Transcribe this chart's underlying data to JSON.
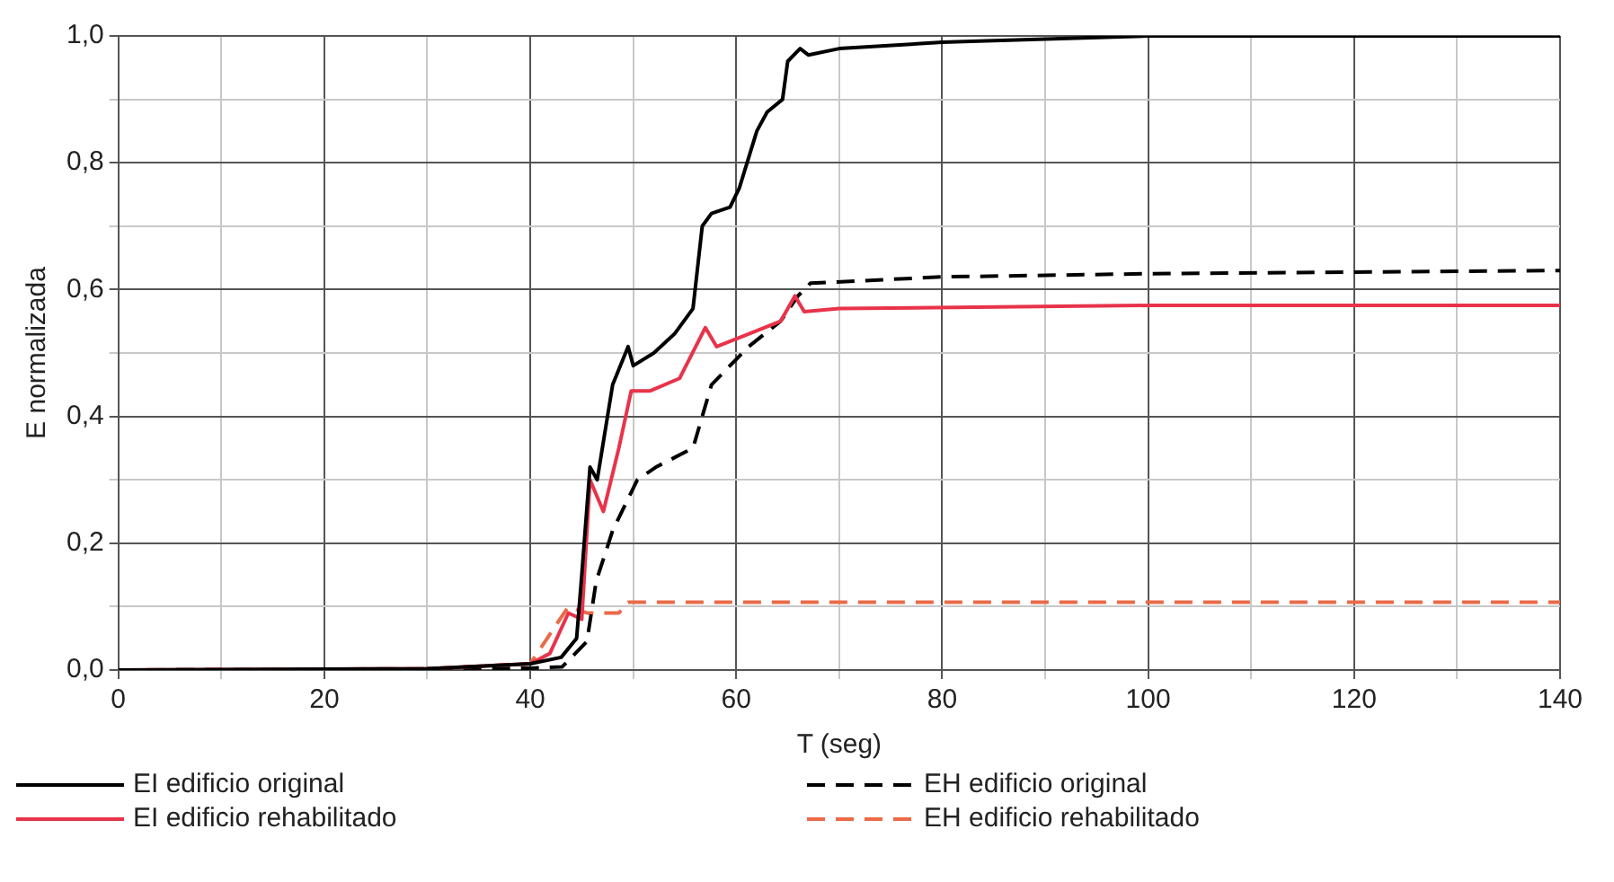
{
  "chart_data": {
    "type": "line",
    "xlabel": "T (seg)",
    "ylabel": "E normalizada",
    "xlim": [
      0,
      140
    ],
    "ylim": [
      0,
      1
    ],
    "xticks": [
      0,
      {
        "value": 10,
        "label": null
      },
      20,
      {
        "value": 30,
        "label": null
      },
      40,
      {
        "value": 50,
        "label": null
      },
      60,
      {
        "value": 70,
        "label": null
      },
      80,
      {
        "value": 90,
        "label": null
      },
      100,
      {
        "value": 110,
        "label": null
      },
      120,
      {
        "value": 130,
        "label": null
      },
      140
    ],
    "yticks": [
      {
        "value": 0,
        "label": "0,0"
      },
      {
        "value": 0.1,
        "label": null
      },
      {
        "value": 0.2,
        "label": "0,2"
      },
      {
        "value": 0.3,
        "label": null
      },
      {
        "value": 0.4,
        "label": "0,4"
      },
      {
        "value": 0.5,
        "label": null
      },
      {
        "value": 0.6,
        "label": "0,6"
      },
      {
        "value": 0.7,
        "label": null
      },
      {
        "value": 0.8,
        "label": "0,8"
      },
      {
        "value": 0.9,
        "label": null
      },
      {
        "value": 1,
        "label": "1,0"
      }
    ],
    "grid": true,
    "legend": "bottom",
    "marker": "none",
    "series": [
      {
        "name": "EI edificio original",
        "color": "#000000",
        "line_style": "solid",
        "x": [
          0,
          30,
          40,
          43,
          44.5,
          45,
          45.8,
          46.5,
          47,
          48,
          49.5,
          50,
          52,
          54,
          55.8,
          56.7,
          57.6,
          59.4,
          60.3,
          62,
          63,
          64.5,
          65,
          66.2,
          67,
          70,
          80,
          90,
          100,
          140
        ],
        "values": [
          0,
          0.002,
          0.01,
          0.02,
          0.05,
          0.15,
          0.32,
          0.3,
          0.35,
          0.45,
          0.51,
          0.48,
          0.5,
          0.53,
          0.57,
          0.7,
          0.72,
          0.73,
          0.76,
          0.85,
          0.88,
          0.9,
          0.96,
          0.98,
          0.97,
          0.98,
          0.99,
          0.995,
          1,
          1
        ]
      },
      {
        "name": "EI edificio rehabilitado",
        "color": "#e8334a",
        "line_style": "solid",
        "x": [
          0,
          30,
          40,
          41.9,
          43.7,
          45,
          45.8,
          47.1,
          48.6,
          49.8,
          51.6,
          54.5,
          57,
          58.1,
          61.2,
          64.3,
          65.7,
          66.6,
          70,
          100,
          140
        ],
        "values": [
          0,
          0.002,
          0.01,
          0.026,
          0.09,
          0.08,
          0.3,
          0.25,
          0.35,
          0.44,
          0.44,
          0.46,
          0.54,
          0.51,
          0.53,
          0.55,
          0.59,
          0.565,
          0.57,
          0.575,
          0.575
        ]
      },
      {
        "name": "EH edificio original",
        "color": "#000000",
        "line_style": "dashed",
        "x": [
          0,
          30,
          40,
          43.1,
          45.5,
          46.4,
          48,
          50.4,
          52.2,
          55.8,
          57.6,
          60,
          61.2,
          64.3,
          66,
          67.2,
          80,
          100,
          140
        ],
        "values": [
          0,
          0.001,
          0.003,
          0.005,
          0.045,
          0.14,
          0.22,
          0.3,
          0.32,
          0.35,
          0.45,
          0.49,
          0.51,
          0.55,
          0.59,
          0.61,
          0.62,
          0.625,
          0.63
        ]
      },
      {
        "name": "EH edificio rehabilitado",
        "color": "#ea6a48",
        "line_style": "dashed",
        "x": [
          0,
          30,
          40,
          43.7,
          45.5,
          48.6,
          49.5,
          140
        ],
        "values": [
          0,
          0.002,
          0.01,
          0.1,
          0.09,
          0.09,
          0.107,
          0.107
        ]
      }
    ]
  }
}
